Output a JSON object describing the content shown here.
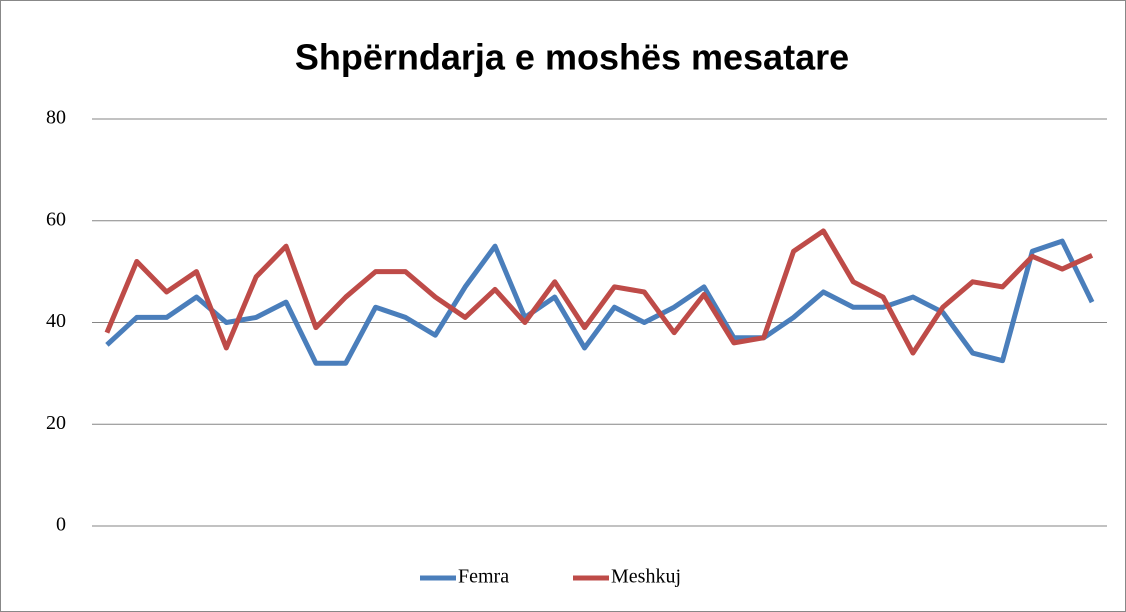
{
  "chart_data": {
    "type": "line",
    "title": "Shpërndarja e moshës mesatare",
    "categories": [
      null,
      null,
      null,
      null,
      null,
      null,
      null,
      null,
      null,
      null,
      null,
      null,
      null,
      null,
      null,
      null,
      null,
      null,
      null,
      null,
      null,
      null,
      null,
      null,
      null,
      null,
      null,
      null,
      null,
      null,
      null,
      null,
      null,
      null
    ],
    "series": [
      {
        "name": "Femra",
        "color": "#4a7ebb",
        "values": [
          35.6,
          41,
          41,
          45,
          40,
          41,
          44,
          32,
          32,
          43,
          41,
          37.5,
          47,
          55,
          41,
          45,
          35,
          43,
          40,
          43,
          47,
          37,
          37,
          41,
          46,
          43,
          43,
          45,
          42,
          34,
          32.5,
          54,
          56,
          44
        ]
      },
      {
        "name": "Meshkuj",
        "color": "#be4b48",
        "values": [
          38,
          52,
          46,
          50,
          35,
          49,
          55,
          39,
          45,
          50,
          50,
          45,
          41,
          46.5,
          40,
          48,
          39,
          47,
          46,
          38,
          45.5,
          36,
          37,
          54,
          58,
          48,
          45,
          34,
          43,
          48,
          47,
          53,
          50.5,
          53.2
        ]
      }
    ],
    "ylim": [
      0,
      80
    ],
    "yticks": [
      0,
      20,
      40,
      60,
      80
    ],
    "grid": true,
    "legend": "bottom"
  }
}
